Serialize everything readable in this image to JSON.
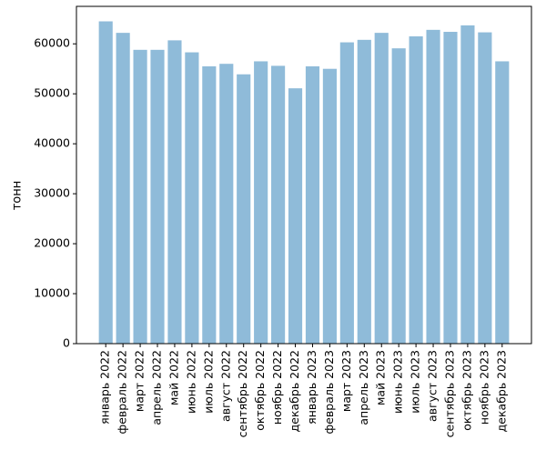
{
  "chart_data": {
    "type": "bar",
    "ylabel": "тонн",
    "xlabel": "",
    "ylim": [
      0,
      67500
    ],
    "yticks": [
      0,
      10000,
      20000,
      30000,
      40000,
      50000,
      60000
    ],
    "bar_color": "#8fbbd9",
    "grid": false,
    "categories": [
      "январь 2022",
      "февраль 2022",
      "март 2022",
      "апрель 2022",
      "май 2022",
      "июнь 2022",
      "июль 2022",
      "август 2022",
      "сентябрь 2022",
      "октябрь 2022",
      "ноябрь 2022",
      "декабрь 2022",
      "январь 2023",
      "февраль 2023",
      "март 2023",
      "апрель 2023",
      "май 2023",
      "июнь 2023",
      "июль 2023",
      "август 2023",
      "сентябрь 2023",
      "октябрь 2023",
      "ноябрь 2023",
      "декабрь 2023"
    ],
    "values": [
      64500,
      62200,
      58800,
      58800,
      60700,
      58300,
      55500,
      56000,
      53900,
      56500,
      55600,
      51100,
      55500,
      55000,
      60300,
      60800,
      62200,
      59100,
      61500,
      62800,
      62400,
      63700,
      62300,
      56500
    ]
  }
}
